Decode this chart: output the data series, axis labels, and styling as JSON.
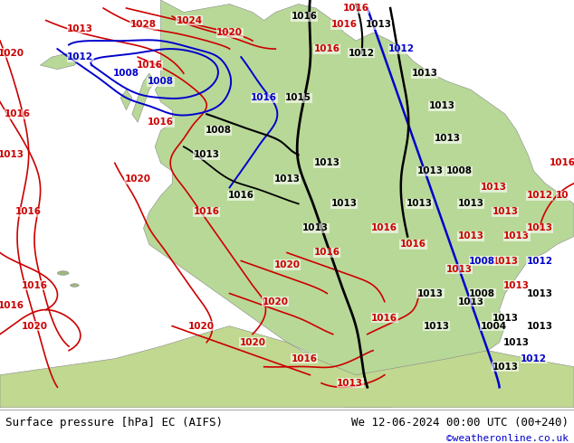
{
  "title_left": "Surface pressure [hPa] EC (AIFS)",
  "title_right": "We 12-06-2024 00:00 UTC (00+240)",
  "copyright": "©weatheronline.co.uk",
  "bg_color": "#d8ecd8",
  "ocean_color": "#c8dff0",
  "land_color": "#b8d898",
  "fig_width": 6.34,
  "fig_height": 4.9,
  "dpi": 100,
  "bottom_bar_color": "#f0f0f0",
  "text_color_left": "#000000",
  "text_color_right": "#000000",
  "copyright_color": "#0000cc",
  "font_size_bottom": 9.0,
  "font_size_copyright": 8.0
}
